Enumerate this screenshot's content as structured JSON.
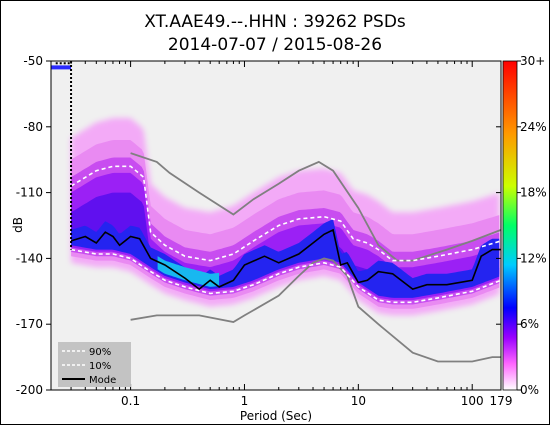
{
  "chart_data": {
    "type": "heatmap",
    "title_line1": "XT.AAE49.--.HHN : 39262 PSDs",
    "title_line2": "2014-07-07 / 2015-08-26",
    "xlabel": "Period (Sec)",
    "ylabel": "dB",
    "xscale": "log",
    "xlim": [
      0.02,
      179
    ],
    "ylim": [
      -200,
      -50
    ],
    "x_ticks": [
      {
        "value": 0.1,
        "label": "0.1"
      },
      {
        "value": 1,
        "label": "1"
      },
      {
        "value": 10,
        "label": "10"
      },
      {
        "value": 100,
        "label": "100"
      },
      {
        "value": 179,
        "label": "179"
      }
    ],
    "y_ticks": [
      {
        "value": -50,
        "label": "-50"
      },
      {
        "value": -80,
        "label": "-80"
      },
      {
        "value": -110,
        "label": "-110"
      },
      {
        "value": -140,
        "label": "-140"
      },
      {
        "value": -170,
        "label": "-170"
      },
      {
        "value": -200,
        "label": "-200"
      }
    ],
    "colorbar": {
      "ticks": [
        {
          "frac": 0,
          "label": "0%"
        },
        {
          "frac": 0.2,
          "label": "6%"
        },
        {
          "frac": 0.4,
          "label": "12%"
        },
        {
          "frac": 0.6,
          "label": "18%"
        },
        {
          "frac": 0.8,
          "label": "24%"
        },
        {
          "frac": 1.0,
          "label": "30+"
        }
      ],
      "colors": [
        "#ffffff",
        "#ff66ff",
        "#9900ff",
        "#0000ff",
        "#00ccff",
        "#00ff66",
        "#ccff00",
        "#ff9900",
        "#ff0000"
      ]
    },
    "legend": {
      "position": "bottom-left",
      "entries": [
        {
          "label": "90%",
          "style": "white-dashed"
        },
        {
          "label": "10%",
          "style": "white-dashed"
        },
        {
          "label": "Mode",
          "style": "black-solid"
        }
      ]
    },
    "series": {
      "nlnm": [
        [
          0.1,
          -168
        ],
        [
          0.17,
          -166
        ],
        [
          0.4,
          -166
        ],
        [
          0.8,
          -169
        ],
        [
          1,
          -166
        ],
        [
          2,
          -157
        ],
        [
          3,
          -148
        ],
        [
          4,
          -142
        ],
        [
          5,
          -140
        ],
        [
          6,
          -141
        ],
        [
          8,
          -148
        ],
        [
          10,
          -162
        ],
        [
          15,
          -170
        ],
        [
          30,
          -183
        ],
        [
          50,
          -187
        ],
        [
          100,
          -187
        ],
        [
          150,
          -185
        ],
        [
          179,
          -185
        ]
      ],
      "nhnm": [
        [
          0.1,
          -92
        ],
        [
          0.17,
          -96
        ],
        [
          0.22,
          -101
        ],
        [
          0.4,
          -110
        ],
        [
          0.8,
          -120
        ],
        [
          1.2,
          -113
        ],
        [
          2,
          -106
        ],
        [
          3,
          -100
        ],
        [
          4.5,
          -96
        ],
        [
          6,
          -100
        ],
        [
          10,
          -117
        ],
        [
          15,
          -134
        ],
        [
          22,
          -141
        ],
        [
          30,
          -141
        ],
        [
          60,
          -136
        ],
        [
          100,
          -132
        ],
        [
          179,
          -127
        ]
      ],
      "p90": [
        [
          0.03,
          -107
        ],
        [
          0.05,
          -100
        ],
        [
          0.07,
          -98
        ],
        [
          0.1,
          -98
        ],
        [
          0.13,
          -103
        ],
        [
          0.15,
          -128
        ],
        [
          0.2,
          -134
        ],
        [
          0.3,
          -139
        ],
        [
          0.5,
          -141
        ],
        [
          0.8,
          -138
        ],
        [
          1.2,
          -132
        ],
        [
          2,
          -125
        ],
        [
          3,
          -122
        ],
        [
          5,
          -121
        ],
        [
          7,
          -123
        ],
        [
          9,
          -131
        ],
        [
          12,
          -133
        ],
        [
          15,
          -136
        ],
        [
          20,
          -141
        ],
        [
          30,
          -141
        ],
        [
          50,
          -139
        ],
        [
          100,
          -136
        ],
        [
          179,
          -132
        ]
      ],
      "p10": [
        [
          0.03,
          -136
        ],
        [
          0.05,
          -138
        ],
        [
          0.07,
          -138
        ],
        [
          0.1,
          -140
        ],
        [
          0.15,
          -146
        ],
        [
          0.2,
          -150
        ],
        [
          0.3,
          -153
        ],
        [
          0.5,
          -156
        ],
        [
          0.8,
          -155
        ],
        [
          1.2,
          -152
        ],
        [
          2,
          -147
        ],
        [
          3,
          -144
        ],
        [
          5,
          -142
        ],
        [
          7,
          -144
        ],
        [
          10,
          -153
        ],
        [
          15,
          -159
        ],
        [
          20,
          -160
        ],
        [
          30,
          -160
        ],
        [
          50,
          -158
        ],
        [
          100,
          -155
        ],
        [
          179,
          -150
        ]
      ],
      "mode": [
        [
          0.03,
          -132
        ],
        [
          0.04,
          -130
        ],
        [
          0.05,
          -133
        ],
        [
          0.06,
          -128
        ],
        [
          0.07,
          -130
        ],
        [
          0.08,
          -134
        ],
        [
          0.1,
          -130
        ],
        [
          0.12,
          -131
        ],
        [
          0.15,
          -140
        ],
        [
          0.2,
          -143
        ],
        [
          0.3,
          -149
        ],
        [
          0.4,
          -154
        ],
        [
          0.5,
          -150
        ],
        [
          0.6,
          -153
        ],
        [
          0.8,
          -150
        ],
        [
          1,
          -143
        ],
        [
          1.5,
          -139
        ],
        [
          2,
          -142
        ],
        [
          3,
          -138
        ],
        [
          4,
          -133
        ],
        [
          5,
          -129
        ],
        [
          6,
          -127
        ],
        [
          7,
          -143
        ],
        [
          8,
          -142
        ],
        [
          10,
          -151
        ],
        [
          12,
          -150
        ],
        [
          15,
          -146
        ],
        [
          20,
          -147
        ],
        [
          30,
          -154
        ],
        [
          40,
          -152
        ],
        [
          60,
          -152
        ],
        [
          100,
          -150
        ],
        [
          120,
          -139
        ],
        [
          150,
          -136
        ],
        [
          179,
          -136
        ]
      ]
    }
  }
}
